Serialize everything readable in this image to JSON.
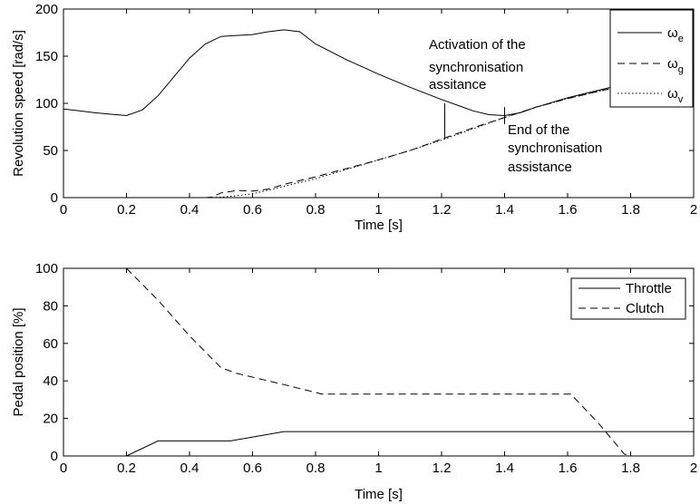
{
  "chart_data": [
    {
      "type": "line",
      "xlabel": "Time [s]",
      "ylabel": "Revolution speed [rad/s]",
      "xlim": [
        0,
        2
      ],
      "ylim": [
        0,
        200
      ],
      "xticks": [
        0,
        0.2,
        0.4,
        0.6,
        0.8,
        1,
        1.2,
        1.4,
        1.6,
        1.8,
        2
      ],
      "xtick_labels": [
        "0",
        "0.2",
        "0.4",
        "0.6",
        "0.8",
        "1",
        "1.2",
        "1.4",
        "1.6",
        "1.8",
        "2"
      ],
      "yticks": [
        0,
        50,
        100,
        150,
        200
      ],
      "ytick_labels": [
        "0",
        "50",
        "100",
        "150",
        "200"
      ],
      "grid": false,
      "legend": "top-right",
      "series": [
        {
          "name": "ω",
          "sub": "e",
          "style": "solid",
          "x": [
            0,
            0.05,
            0.1,
            0.15,
            0.2,
            0.25,
            0.3,
            0.35,
            0.4,
            0.45,
            0.5,
            0.55,
            0.6,
            0.65,
            0.7,
            0.75,
            0.8,
            0.9,
            1.0,
            1.1,
            1.2,
            1.3,
            1.35,
            1.4,
            1.45,
            1.5,
            1.6,
            1.7,
            1.8,
            1.9,
            2.0
          ],
          "y": [
            94,
            92,
            90,
            88.5,
            87,
            93,
            108,
            128,
            148,
            163,
            171,
            172,
            173,
            176,
            178,
            176,
            163,
            146,
            131,
            117,
            104,
            92,
            88,
            87,
            90,
            96,
            106,
            114,
            122,
            131,
            141
          ]
        },
        {
          "name": "ω",
          "sub": "g",
          "style": "dashed",
          "x": [
            0,
            0.4,
            0.45,
            0.47,
            0.5,
            0.55,
            0.6,
            0.65,
            0.7,
            0.8,
            0.9,
            1.0,
            1.1,
            1.2,
            1.3,
            1.4,
            1.5,
            1.6,
            1.7,
            1.8,
            1.9,
            2.0
          ],
          "y": [
            0,
            0,
            0,
            0.5,
            5,
            7.5,
            7,
            9,
            14,
            22,
            31,
            40,
            50,
            62,
            74,
            85,
            96,
            105,
            113,
            120,
            130,
            141
          ]
        },
        {
          "name": "ω",
          "sub": "v",
          "style": "dotted",
          "x": [
            0,
            0.45,
            0.5,
            0.55,
            0.6,
            0.65,
            0.7,
            0.8,
            0.9,
            1.0,
            1.1,
            1.2,
            1.3,
            1.4,
            1.5,
            1.6,
            1.7,
            1.8,
            1.9,
            2.0
          ],
          "y": [
            0,
            0,
            0.5,
            2,
            4,
            8,
            12,
            20,
            30,
            40,
            50,
            61,
            73,
            85,
            96,
            105,
            113,
            120,
            130,
            141
          ]
        }
      ],
      "annotations": [
        {
          "lines": [
            "Activation of the",
            "synchronisation",
            "assitance"
          ],
          "x": 1.21
        },
        {
          "lines": [
            "End of the",
            "synchronisation",
            "assistance"
          ],
          "x": 1.4
        }
      ],
      "markers": [
        {
          "x": 1.21,
          "y_from": 62,
          "y_to": 100
        },
        {
          "x": 1.4,
          "y_from": 78,
          "y_to": 96
        }
      ]
    },
    {
      "type": "line",
      "xlabel": "Time [s]",
      "ylabel": "Pedal position [%]",
      "xlim": [
        0,
        2
      ],
      "ylim": [
        0,
        100
      ],
      "xticks": [
        0,
        0.2,
        0.4,
        0.6,
        0.8,
        1,
        1.2,
        1.4,
        1.6,
        1.8,
        2
      ],
      "xtick_labels": [
        "0",
        "0.2",
        "0.4",
        "0.6",
        "0.8",
        "1",
        "1.2",
        "1.4",
        "1.6",
        "1.8",
        "2"
      ],
      "yticks": [
        0,
        20,
        40,
        60,
        80,
        100
      ],
      "ytick_labels": [
        "0",
        "20",
        "40",
        "60",
        "80",
        "100"
      ],
      "grid": false,
      "legend": "top-right",
      "series": [
        {
          "name": "Throttle",
          "style": "solid",
          "x": [
            0,
            0.2,
            0.3,
            0.53,
            0.7,
            2.0
          ],
          "y": [
            0,
            0,
            8,
            8,
            13,
            13
          ]
        },
        {
          "name": "Clutch",
          "style": "dashed",
          "x": [
            0.2,
            0.3,
            0.4,
            0.5,
            0.55,
            0.7,
            0.82,
            1.2,
            1.61,
            1.7,
            1.78,
            1.8,
            2.0
          ],
          "y": [
            100,
            83,
            64,
            47,
            44,
            38,
            33,
            33,
            33,
            17,
            1,
            0,
            0
          ]
        }
      ]
    }
  ]
}
